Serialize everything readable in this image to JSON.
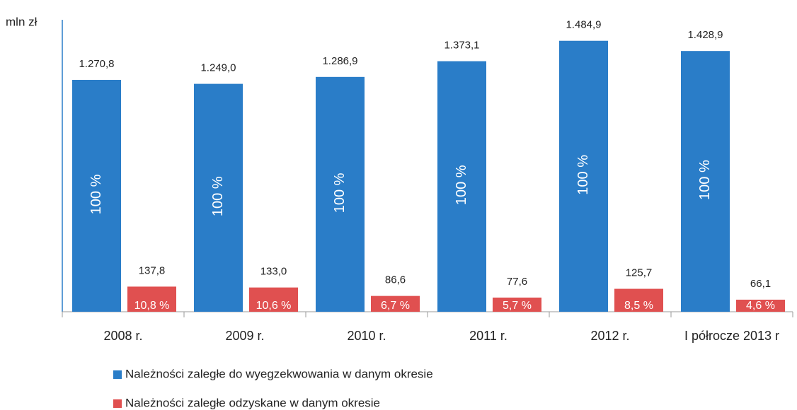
{
  "chart_data": {
    "type": "bar",
    "y_label": "mln zł",
    "categories": [
      "2008 r.",
      "2009 r.",
      "2010 r.",
      "2011 r.",
      "2012 r.",
      "I półrocze 2013 r"
    ],
    "ylim": [
      0,
      1600
    ],
    "series": [
      {
        "name": "Należności zaległe do wyegzekwowania w danym okresie",
        "color": "#2a7dc8",
        "values": [
          1270.8,
          1249.0,
          1286.9,
          1373.1,
          1484.9,
          1428.9
        ],
        "value_labels": [
          "1.270,8",
          "1.249,0",
          "1.286,9",
          "1.373,1",
          "1.484,9",
          "1.428,9"
        ],
        "share_labels": [
          "100 %",
          "100 %",
          "100 %",
          "100 %",
          "100 %",
          "100 %"
        ]
      },
      {
        "name": "Należności zaległe odzyskane w danym okresie",
        "color": "#e05050",
        "values": [
          137.8,
          133.0,
          86.6,
          77.6,
          125.7,
          66.1
        ],
        "value_labels": [
          "137,8",
          "133,0",
          "86,6",
          "77,6",
          "125,7",
          "66,1"
        ],
        "share_labels": [
          "10,8 %",
          "10,6 %",
          "6,7 %",
          "5,7 %",
          "8,5 %",
          "4,6 %"
        ]
      }
    ]
  }
}
